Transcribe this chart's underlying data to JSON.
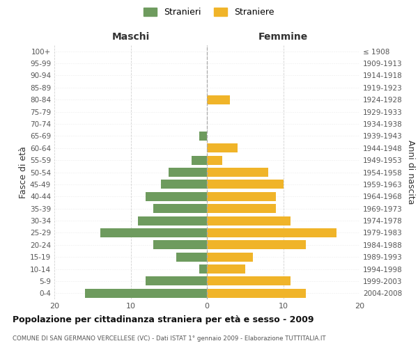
{
  "age_groups": [
    "100+",
    "95-99",
    "90-94",
    "85-89",
    "80-84",
    "75-79",
    "70-74",
    "65-69",
    "60-64",
    "55-59",
    "50-54",
    "45-49",
    "40-44",
    "35-39",
    "30-34",
    "25-29",
    "20-24",
    "15-19",
    "10-14",
    "5-9",
    "0-4"
  ],
  "birth_years": [
    "≤ 1908",
    "1909-1913",
    "1914-1918",
    "1919-1923",
    "1924-1928",
    "1929-1933",
    "1934-1938",
    "1939-1943",
    "1944-1948",
    "1949-1953",
    "1954-1958",
    "1959-1963",
    "1964-1968",
    "1969-1973",
    "1974-1978",
    "1979-1983",
    "1984-1988",
    "1989-1993",
    "1994-1998",
    "1999-2003",
    "2004-2008"
  ],
  "maschi": [
    0,
    0,
    0,
    0,
    0,
    0,
    0,
    1,
    0,
    2,
    5,
    6,
    8,
    7,
    9,
    14,
    7,
    4,
    1,
    8,
    16
  ],
  "femmine": [
    0,
    0,
    0,
    0,
    3,
    0,
    0,
    0,
    4,
    2,
    8,
    10,
    9,
    9,
    11,
    17,
    13,
    6,
    5,
    11,
    13
  ],
  "maschi_color": "#6e9b5e",
  "femmine_color": "#f0b429",
  "title": "Popolazione per cittadinanza straniera per età e sesso - 2009",
  "subtitle": "COMUNE DI SAN GERMANO VERCELLESE (VC) - Dati ISTAT 1° gennaio 2009 - Elaborazione TUTTITALIA.IT",
  "ylabel_left": "Fasce di età",
  "ylabel_right": "Anni di nascita",
  "xlabel_left": "Maschi",
  "xlabel_top_right": "Femmine",
  "legend_stranieri": "Stranieri",
  "legend_straniere": "Straniere",
  "xlim": 20,
  "background_color": "#ffffff",
  "grid_color": "#cccccc",
  "bar_height": 0.75
}
